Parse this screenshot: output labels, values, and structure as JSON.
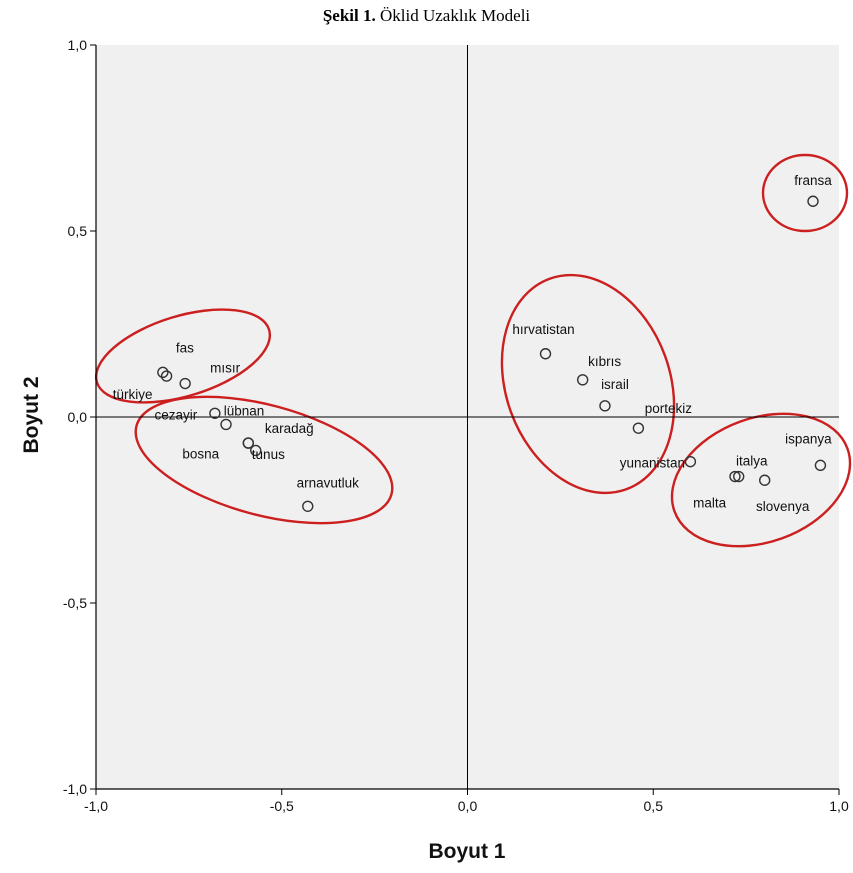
{
  "figure": {
    "caption_bold": "Şekil 1.",
    "caption_text": "Öklid Uzaklık Modeli"
  },
  "chart_data": {
    "type": "scatter",
    "title": "",
    "xlabel": "Boyut 1",
    "ylabel": "Boyut 2",
    "xlim": [
      -1.0,
      1.0
    ],
    "ylim": [
      -1.0,
      1.0
    ],
    "xticks": [
      "-1,0",
      "-0,5",
      "0,0",
      "0,5",
      "1,0"
    ],
    "yticks": [
      "-1,0",
      "-0,5",
      "0,0",
      "0,5",
      "1,0"
    ],
    "grid": false,
    "reference_lines": {
      "x": 0,
      "y": 0
    },
    "background": "#f0f0f0",
    "point_color": "#333333",
    "highlight_color": "#cc1f1f",
    "points": [
      {
        "label": "fas",
        "x": -0.82,
        "y": 0.12
      },
      {
        "label": "türkiye",
        "x": -0.81,
        "y": 0.11
      },
      {
        "label": "mısır",
        "x": -0.76,
        "y": 0.09
      },
      {
        "label": "cezayir",
        "x": -0.68,
        "y": 0.01
      },
      {
        "label": "lübnan",
        "x": -0.65,
        "y": -0.02
      },
      {
        "label": "karadağ",
        "x": -0.59,
        "y": -0.07
      },
      {
        "label": "bosna",
        "x": -0.57,
        "y": -0.09
      },
      {
        "label": "tunus",
        "x": -0.59,
        "y": -0.07
      },
      {
        "label": "arnavutluk",
        "x": -0.43,
        "y": -0.24
      },
      {
        "label": "hırvatistan",
        "x": 0.21,
        "y": 0.17
      },
      {
        "label": "kıbrıs",
        "x": 0.31,
        "y": 0.1
      },
      {
        "label": "israil",
        "x": 0.37,
        "y": 0.03
      },
      {
        "label": "portekiz",
        "x": 0.46,
        "y": -0.03
      },
      {
        "label": "yunanistan",
        "x": 0.6,
        "y": -0.12
      },
      {
        "label": "italya",
        "x": 0.72,
        "y": -0.16
      },
      {
        "label": "malta",
        "x": 0.73,
        "y": -0.16
      },
      {
        "label": "slovenya",
        "x": 0.8,
        "y": -0.17
      },
      {
        "label": "ispanya",
        "x": 0.95,
        "y": -0.13
      },
      {
        "label": "fransa",
        "x": 0.93,
        "y": 0.58
      }
    ],
    "groups": [
      [
        "fas",
        "türkiye",
        "mısır"
      ],
      [
        "cezayir",
        "lübnan",
        "karadağ",
        "bosna",
        "tunus",
        "arnavutluk"
      ],
      [
        "hırvatistan",
        "kıbrıs",
        "israil",
        "portekiz",
        "yunanistan"
      ],
      [
        "italya",
        "malta",
        "slovenya",
        "ispanya"
      ],
      [
        "fransa"
      ]
    ]
  }
}
